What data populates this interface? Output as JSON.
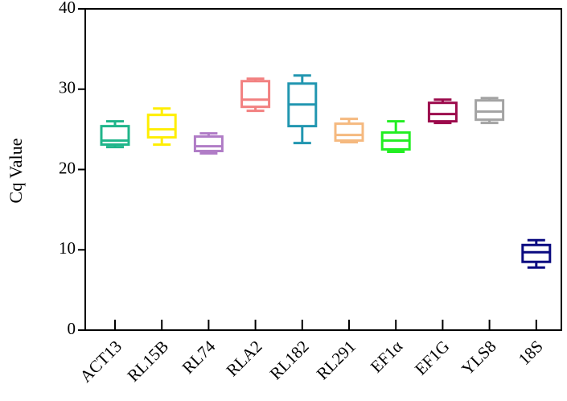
{
  "chart_data": {
    "type": "box",
    "title": "",
    "xlabel": "",
    "ylabel": "Cq Value",
    "ylim": [
      0,
      40
    ],
    "yticks": [
      "0",
      "10",
      "20",
      "30",
      "40"
    ],
    "ytick_values": [
      0,
      10,
      20,
      30,
      40
    ],
    "grid": false,
    "legend": "none",
    "categories": [
      "ACT13",
      "RL15B",
      "RL74",
      "RLA2",
      "RL182",
      "RL291",
      "EF1α",
      "EF1G",
      "YLS8",
      "18S"
    ],
    "boxes": [
      {
        "label": "ACT13",
        "color": "#1fb58a",
        "min": 22.8,
        "q1": 23.1,
        "median": 23.6,
        "q3": 25.4,
        "max": 26.0
      },
      {
        "label": "RL15B",
        "color": "#ffee00",
        "min": 23.1,
        "q1": 24.0,
        "median": 25.0,
        "q3": 26.8,
        "max": 27.6
      },
      {
        "label": "RL74",
        "color": "#b07cc6",
        "min": 22.0,
        "q1": 22.3,
        "median": 22.9,
        "q3": 24.1,
        "max": 24.5
      },
      {
        "label": "RLA2",
        "color": "#f28080",
        "min": 27.3,
        "q1": 27.8,
        "median": 28.7,
        "q3": 31.0,
        "max": 31.3
      },
      {
        "label": "RL182",
        "color": "#2196b0",
        "min": 23.3,
        "q1": 25.4,
        "median": 28.1,
        "q3": 30.7,
        "max": 31.7
      },
      {
        "label": "RL291",
        "color": "#f5b97f",
        "min": 23.4,
        "q1": 23.6,
        "median": 24.3,
        "q3": 25.7,
        "max": 26.3
      },
      {
        "label": "EF1α",
        "color": "#22ee22",
        "min": 22.2,
        "q1": 22.5,
        "median": 23.6,
        "q3": 24.6,
        "max": 26.0
      },
      {
        "label": "EF1G",
        "color": "#9c0a4c",
        "min": 25.8,
        "q1": 26.0,
        "median": 26.9,
        "q3": 28.3,
        "max": 28.7
      },
      {
        "label": "YLS8",
        "color": "#a3a3a3",
        "min": 25.8,
        "q1": 26.2,
        "median": 27.2,
        "q3": 28.6,
        "max": 28.9
      },
      {
        "label": "18S",
        "color": "#0a0a80",
        "min": 7.8,
        "q1": 8.5,
        "median": 9.7,
        "q3": 10.6,
        "max": 11.2
      }
    ]
  }
}
